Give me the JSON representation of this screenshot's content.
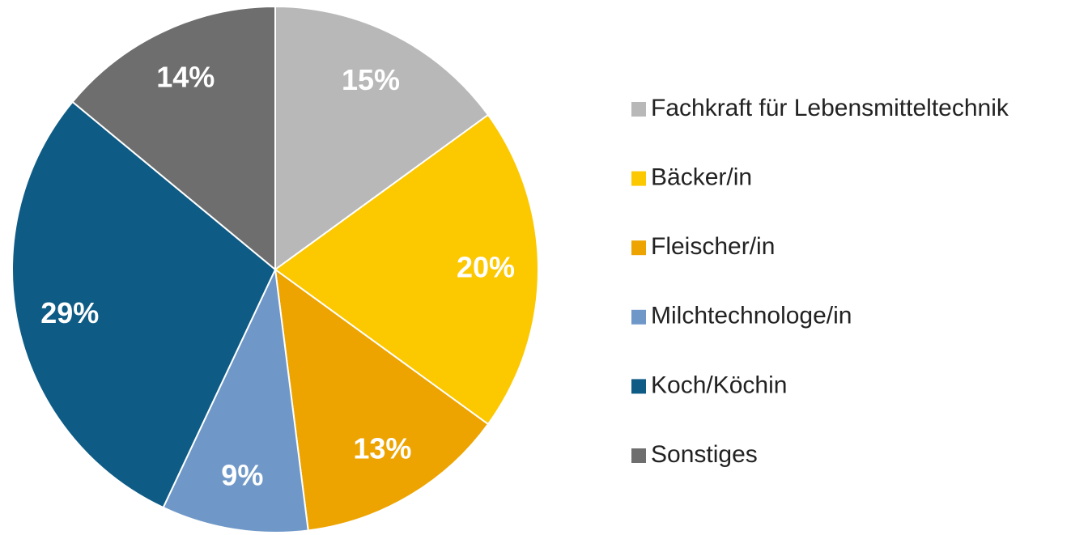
{
  "chart_data": {
    "type": "pie",
    "categories": [
      "Fachkraft für Lebensmitteltechnik",
      "Bäcker/in",
      "Fleischer/in",
      "Milchtechnologe/in",
      "Koch/Köchin",
      "Sonstiges"
    ],
    "values": [
      15,
      20,
      13,
      9,
      29,
      14
    ],
    "value_labels": [
      "15%",
      "20%",
      "13%",
      "9%",
      "29%",
      "14%"
    ],
    "colors": [
      "#b8b8b8",
      "#fcc800",
      "#eda400",
      "#6f98c8",
      "#0e5b85",
      "#6e6e6e"
    ],
    "legend": "right"
  }
}
